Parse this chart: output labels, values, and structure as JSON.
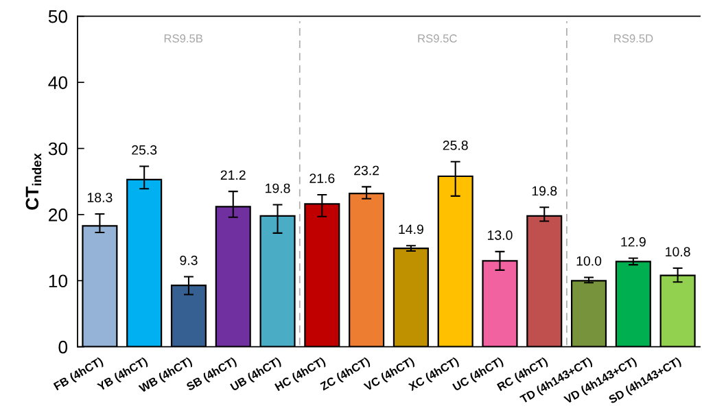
{
  "chart_data": {
    "type": "bar",
    "ylabel": "CT$_{index}$",
    "categories": [
      "FB (4hCT)",
      "YB (4hCT)",
      "WB (4hCT)",
      "SB (4hCT)",
      "UB (4hCT)",
      "HC (4hCT)",
      "ZC (4hCT)",
      "VC (4hCT)",
      "XC (4hCT)",
      "UC (4hCT)",
      "RC (4hCT)",
      "TD (4h143+CT)",
      "VD (4h143+CT)",
      "SD (4h143+CT)"
    ],
    "values": [
      18.3,
      25.3,
      9.3,
      21.2,
      19.8,
      21.6,
      23.2,
      14.9,
      25.8,
      13.0,
      19.8,
      10.0,
      12.9,
      10.8
    ],
    "value_labels": [
      "18.3",
      "25.3",
      "9.3",
      "21.2",
      "19.8",
      "21.6",
      "23.2",
      "14.9",
      "25.8",
      "13.0",
      "19.8",
      "10.0",
      "12.9",
      "10.8"
    ],
    "errors": [
      [
        17.3,
        20.1
      ],
      [
        23.9,
        27.3
      ],
      [
        7.9,
        10.6
      ],
      [
        19.6,
        23.5
      ],
      [
        17.2,
        21.5
      ],
      [
        19.7,
        23.0
      ],
      [
        22.4,
        24.2
      ],
      [
        14.5,
        15.3
      ],
      [
        22.8,
        28.0
      ],
      [
        11.6,
        14.4
      ],
      [
        19.0,
        21.1
      ],
      [
        9.7,
        10.5
      ],
      [
        12.4,
        13.4
      ],
      [
        9.8,
        11.9
      ]
    ],
    "colors": [
      "#95b3d7",
      "#00b0f0",
      "#366092",
      "#7030a0",
      "#4bacc6",
      "#c00000",
      "#ed7d31",
      "#bf9000",
      "#ffc000",
      "#f062a0",
      "#c0504d",
      "#77933c",
      "#00b050",
      "#92d050"
    ],
    "ylim": [
      0,
      50
    ],
    "yticks": [
      0,
      10,
      20,
      30,
      40,
      50
    ],
    "annotations": [
      "RS9.5B",
      "RS9.5C",
      "RS9.5D"
    ],
    "grid": false
  }
}
